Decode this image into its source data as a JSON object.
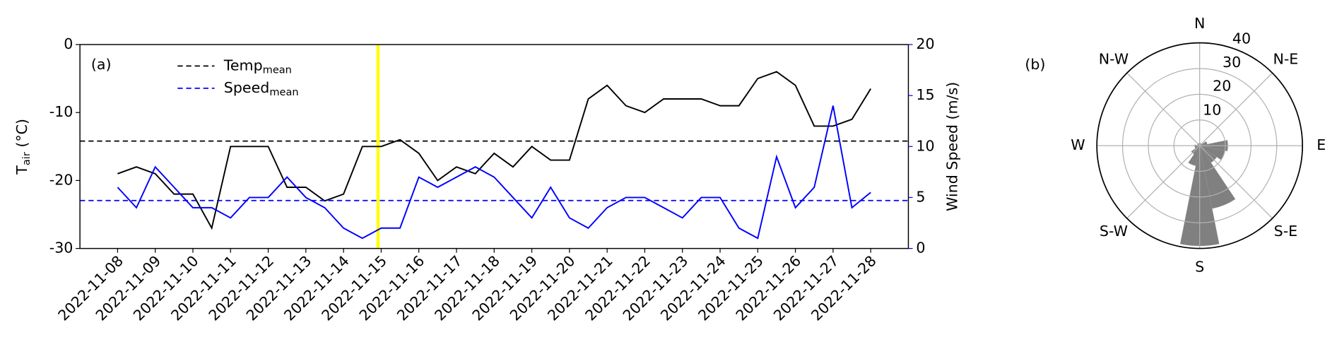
{
  "chart_data": [
    {
      "type": "line",
      "panel_label": "(a)",
      "ylabel_parts": [
        "T",
        "air",
        " (°C)"
      ],
      "y2label": "Wind Speed (m/s)",
      "x": [
        "2022-11-08 00:00",
        "2022-11-08 12:00",
        "2022-11-09 00:00",
        "2022-11-09 12:00",
        "2022-11-10 00:00",
        "2022-11-10 12:00",
        "2022-11-11 00:00",
        "2022-11-11 12:00",
        "2022-11-12 00:00",
        "2022-11-12 12:00",
        "2022-11-13 00:00",
        "2022-11-13 12:00",
        "2022-11-14 00:00",
        "2022-11-14 12:00",
        "2022-11-15 00:00",
        "2022-11-15 12:00",
        "2022-11-16 00:00",
        "2022-11-16 12:00",
        "2022-11-17 00:00",
        "2022-11-17 12:00",
        "2022-11-18 00:00",
        "2022-11-18 12:00",
        "2022-11-19 00:00",
        "2022-11-19 12:00",
        "2022-11-20 00:00",
        "2022-11-20 12:00",
        "2022-11-21 00:00",
        "2022-11-21 12:00",
        "2022-11-22 00:00",
        "2022-11-22 12:00",
        "2022-11-23 00:00",
        "2022-11-23 12:00",
        "2022-11-24 00:00",
        "2022-11-24 12:00",
        "2022-11-25 00:00",
        "2022-11-25 12:00",
        "2022-11-26 00:00",
        "2022-11-26 12:00",
        "2022-11-27 00:00",
        "2022-11-27 12:00",
        "2022-11-28 00:00"
      ],
      "series": [
        {
          "color": "#000000",
          "values": [
            -19,
            -18,
            -19,
            -22,
            -22,
            -27,
            -15,
            -15,
            -15,
            -21,
            -21,
            -23,
            -22,
            -15,
            -15,
            -14,
            -16,
            -20,
            -18,
            -19,
            -16,
            -18,
            -15,
            -17,
            -17,
            -8,
            -6,
            -9,
            -10,
            -8,
            -8,
            -8,
            -9,
            -9,
            -5,
            -4,
            -6,
            -12,
            -12,
            -11,
            -6.5
          ]
        },
        {
          "color": "#0000ff",
          "axis": "y2",
          "values": [
            6,
            4,
            8,
            6,
            4,
            4,
            3,
            5,
            5,
            7,
            5,
            4,
            2,
            1,
            2,
            2,
            7,
            6,
            7,
            8,
            7,
            5,
            3,
            6,
            3,
            2,
            4,
            5,
            5,
            4,
            3,
            5,
            5,
            2,
            1,
            9,
            4,
            6,
            14,
            4,
            5.5
          ]
        }
      ],
      "mean_lines": [
        {
          "name": "Temp",
          "name_sub": "mean",
          "value": -14.2,
          "color": "#000000"
        },
        {
          "name": "Speed",
          "name_sub": "mean",
          "value": 4.7,
          "axis": "y2",
          "color": "#0000ff"
        }
      ],
      "highlight": {
        "span": [
          "2022-11-14 21:00",
          "2022-11-14 23:00"
        ],
        "color": "#ffff00"
      },
      "xlim": [
        "2022-11-07",
        "2022-11-29"
      ],
      "xticks": [
        "2022-11-08",
        "2022-11-09",
        "2022-11-10",
        "2022-11-11",
        "2022-11-12",
        "2022-11-13",
        "2022-11-14",
        "2022-11-15",
        "2022-11-16",
        "2022-11-17",
        "2022-11-18",
        "2022-11-19",
        "2022-11-20",
        "2022-11-21",
        "2022-11-22",
        "2022-11-23",
        "2022-11-24",
        "2022-11-25",
        "2022-11-26",
        "2022-11-27",
        "2022-11-28"
      ],
      "ylim": [
        -30,
        0
      ],
      "yticks": [
        -30,
        -20,
        -10,
        0
      ],
      "y2lim": [
        0,
        20
      ],
      "y2ticks": [
        0,
        5,
        10,
        15,
        20
      ],
      "y2color": "#0000ff",
      "legend": "upper left"
    },
    {
      "type": "windrose",
      "panel_label": "(b)",
      "categories": [
        "N",
        null,
        "N-E",
        null,
        "E",
        null,
        "S-E",
        null,
        "S",
        null,
        "S-W",
        null,
        "W",
        null,
        "N-W",
        null
      ],
      "values": [
        1,
        1,
        1,
        3,
        11,
        10,
        8,
        25,
        39,
        8,
        4,
        2,
        2,
        1,
        1,
        1
      ],
      "color": "#808080",
      "rlim": [
        0,
        40
      ],
      "rticks": [
        10,
        20,
        30,
        40
      ],
      "grid": true
    }
  ]
}
